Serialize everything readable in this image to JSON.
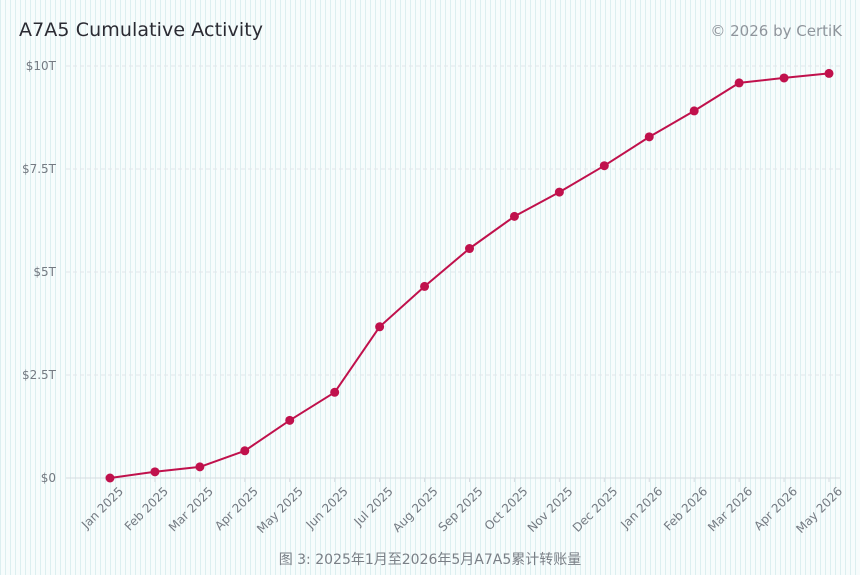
{
  "header": {
    "title": "A7A5 Cumulative Activity",
    "watermark": "© 2026 by CertiK"
  },
  "caption": "图 3: 2025年1月至2026年5月A7A5累计转账量",
  "chart_data": {
    "type": "line",
    "title": "A7A5 Cumulative Activity",
    "xlabel": "",
    "ylabel": "",
    "categories": [
      "Jan 2025",
      "Feb 2025",
      "Mar 2025",
      "Apr 2025",
      "May 2025",
      "Jun 2025",
      "Jul 2025",
      "Aug 2025",
      "Sep 2025",
      "Oct 2025",
      "Nov 2025",
      "Dec 2025",
      "Jan 2026",
      "Feb 2026",
      "Mar 2026",
      "Apr 2026",
      "May 2026"
    ],
    "series": [
      {
        "values": [
          0,
          0.15,
          0.27,
          0.66,
          1.4,
          2.08,
          3.67,
          4.65,
          5.57,
          6.35,
          6.94,
          7.58,
          8.28,
          8.91,
          9.59,
          9.71,
          9.82
        ]
      }
    ],
    "unit": "T",
    "ylim": [
      0,
      10
    ],
    "yticks": [
      0,
      2.5,
      5,
      7.5,
      10
    ],
    "ytick_labels": [
      "$0",
      "$2.5T",
      "$5T",
      "$7.5T",
      "$10T"
    ],
    "grid": true,
    "legend": "none",
    "colors": {
      "line": "#c0114c",
      "grid": "#e2e6ea",
      "axis": "#d6dbe0"
    }
  }
}
